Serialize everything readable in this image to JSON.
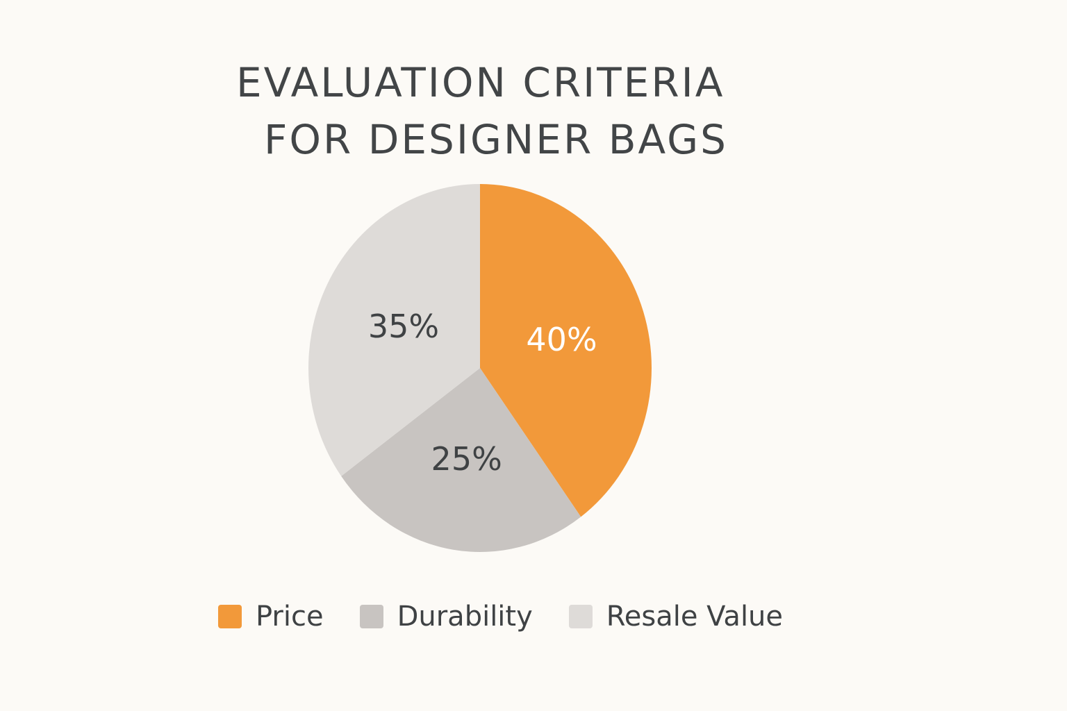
{
  "chart_data": {
    "type": "pie",
    "title_lines": [
      "EVALUATION CRITERIA",
      "FOR DESIGNER BAGS"
    ],
    "slices": [
      {
        "name": "Price",
        "value": 40,
        "label": "40%",
        "color": "#f2993a",
        "label_color": "#ffffff"
      },
      {
        "name": "Durability",
        "value": 25,
        "label": "25%",
        "color": "#c8c4c1",
        "label_color": "#3f4244"
      },
      {
        "name": "Resale Value",
        "value": 35,
        "label": "35%",
        "color": "#dedbd8",
        "label_color": "#3f4244"
      }
    ],
    "start_angle_deg": 0,
    "direction": "clockwise",
    "legend_position": "bottom"
  }
}
